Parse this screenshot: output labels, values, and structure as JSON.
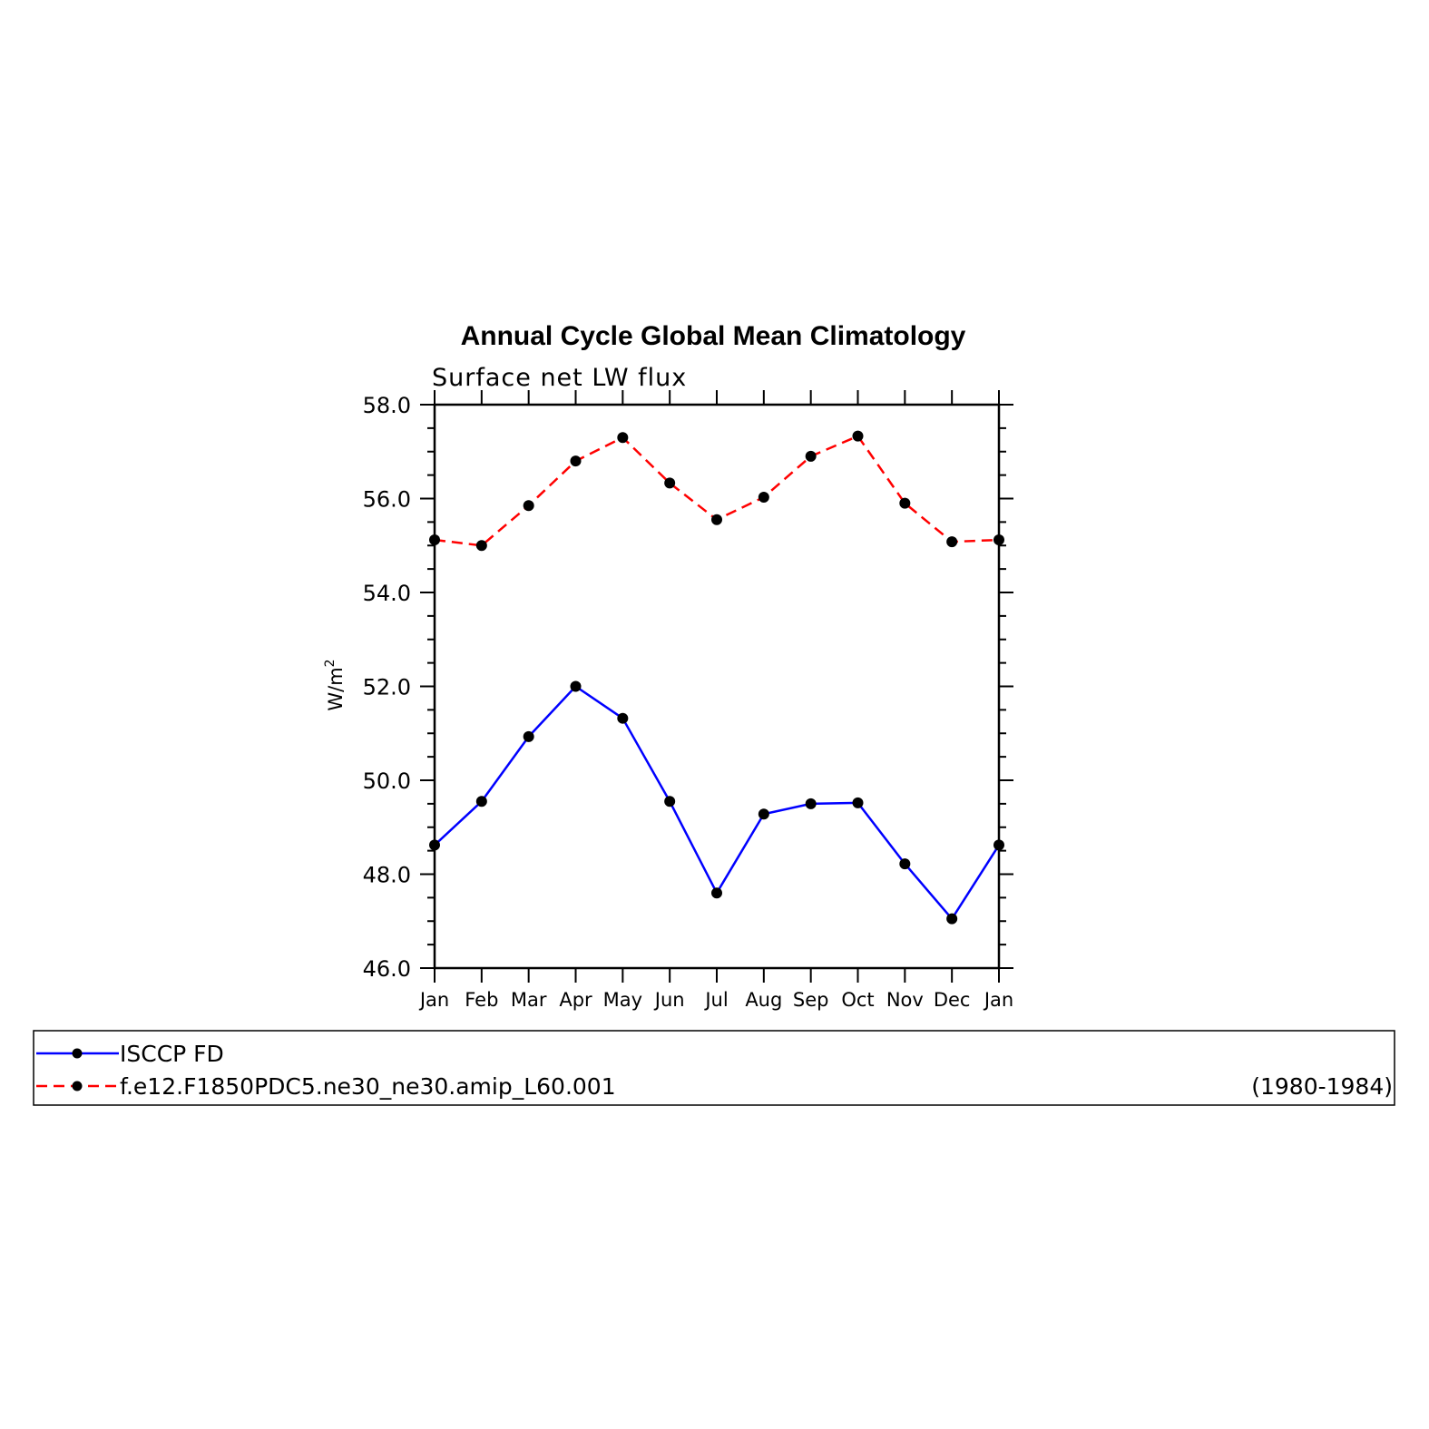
{
  "chart_data": {
    "type": "line",
    "title": "Annual Cycle Global Mean Climatology",
    "subtitle": "Surface net LW flux",
    "ylabel_main": "W/m",
    "ylabel_sup": "2",
    "xlabel": "",
    "categories": [
      "Jan",
      "Feb",
      "Mar",
      "Apr",
      "May",
      "Jun",
      "Jul",
      "Aug",
      "Sep",
      "Oct",
      "Nov",
      "Dec",
      "Jan"
    ],
    "ylim": [
      46.0,
      58.0
    ],
    "yticks": [
      "46.0",
      "48.0",
      "50.0",
      "52.0",
      "54.0",
      "56.0",
      "58.0"
    ],
    "grid": false,
    "legend_placement": "bottom",
    "series": [
      {
        "name": "ISCCP FD",
        "color": "#0000ff",
        "line_style": "solid",
        "marker": "filled-circle",
        "values": [
          48.62,
          49.55,
          50.93,
          52.0,
          51.32,
          49.55,
          47.6,
          49.28,
          49.5,
          49.52,
          48.22,
          47.05,
          48.62
        ]
      },
      {
        "name": "f.e12.F1850PDC5.ne30_ne30.amip_L60.001",
        "color": "#ff0000",
        "line_style": "dashed",
        "marker": "filled-circle",
        "values": [
          55.12,
          55.0,
          55.85,
          56.8,
          57.3,
          56.33,
          55.55,
          56.03,
          56.9,
          57.33,
          55.9,
          55.08,
          55.12
        ]
      }
    ],
    "legend_note": "(1980-1984)"
  }
}
